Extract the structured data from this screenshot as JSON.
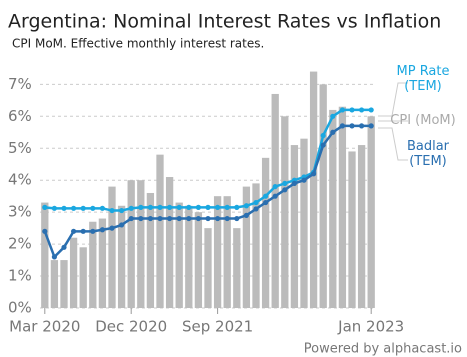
{
  "chart_data": {
    "type": "bar_line",
    "title": "Argentina: Nominal Interest Rates vs Inflation",
    "subtitle": "CPI MoM. Effective monthly interest rates.",
    "footer": "Powered by alphacast.io",
    "categories": [
      "Mar 2020",
      null,
      null,
      null,
      null,
      null,
      null,
      null,
      null,
      "Dec 2020",
      null,
      null,
      null,
      null,
      null,
      null,
      null,
      null,
      "Sep 2021",
      null,
      null,
      null,
      null,
      null,
      null,
      null,
      null,
      null,
      null,
      null,
      null,
      null,
      null,
      null,
      "Jan 2023"
    ],
    "ylim": [
      0,
      7.7
    ],
    "yticks": [
      {
        "value": 0,
        "label": "0%"
      },
      {
        "value": 1,
        "label": "1%"
      },
      {
        "value": 2,
        "label": "2%"
      },
      {
        "value": 3,
        "label": "3%"
      },
      {
        "value": 4,
        "label": "4%"
      },
      {
        "value": 5,
        "label": "5%"
      },
      {
        "value": 6,
        "label": "6%"
      },
      {
        "value": 7,
        "label": "7%"
      }
    ],
    "grid": true,
    "series": [
      {
        "name": "CPI (MoM)",
        "kind": "bar",
        "color": "#bbbbbb",
        "values": [
          3.3,
          1.5,
          1.5,
          2.2,
          1.9,
          2.7,
          2.8,
          3.8,
          3.2,
          4.0,
          4.0,
          3.6,
          4.8,
          4.1,
          3.3,
          3.2,
          3.0,
          2.5,
          3.5,
          3.5,
          2.5,
          3.8,
          3.9,
          4.7,
          6.7,
          6.0,
          5.1,
          5.3,
          7.4,
          7.0,
          6.2,
          6.3,
          4.9,
          5.1,
          6.0
        ]
      },
      {
        "name": "MP Rate (TEM)",
        "kind": "line",
        "color": "#1aa7e0",
        "values": [
          3.15,
          3.12,
          3.12,
          3.12,
          3.12,
          3.12,
          3.12,
          3.05,
          3.05,
          3.12,
          3.15,
          3.15,
          3.15,
          3.15,
          3.15,
          3.15,
          3.15,
          3.15,
          3.15,
          3.15,
          3.15,
          3.2,
          3.3,
          3.5,
          3.8,
          3.9,
          4.0,
          4.1,
          4.25,
          5.4,
          6.0,
          6.2,
          6.2,
          6.2,
          6.2
        ]
      },
      {
        "name": "Badlar (TEM)",
        "kind": "line",
        "color": "#2a6fb0",
        "values": [
          2.4,
          1.6,
          1.9,
          2.4,
          2.4,
          2.4,
          2.45,
          2.5,
          2.6,
          2.8,
          2.8,
          2.8,
          2.8,
          2.8,
          2.8,
          2.8,
          2.8,
          2.8,
          2.8,
          2.8,
          2.8,
          2.9,
          3.1,
          3.3,
          3.5,
          3.7,
          3.9,
          4.0,
          4.2,
          5.1,
          5.5,
          5.7,
          5.7,
          5.7,
          5.7
        ]
      }
    ]
  }
}
